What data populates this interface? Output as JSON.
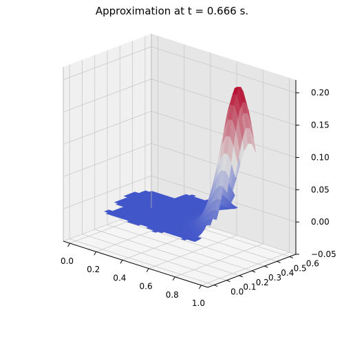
{
  "chart_data": {
    "type": "surface",
    "title": "Approximation at t = 0.666 s.",
    "xlabel": "",
    "ylabel": "",
    "zlabel": "",
    "xlim": [
      -0.05,
      1.05
    ],
    "ylim": [
      -0.05,
      0.65
    ],
    "zlim": [
      -0.05,
      0.22
    ],
    "x_ticks": [
      "0.0",
      "0.2",
      "0.4",
      "0.6",
      "0.8",
      "1.0"
    ],
    "y_ticks": [
      "0.0",
      "0.1",
      "0.2",
      "0.3",
      "0.4",
      "0.5",
      "0.6"
    ],
    "z_ticks": [
      "−0.05",
      "0.00",
      "0.05",
      "0.10",
      "0.15",
      "0.20"
    ],
    "colormap": "coolwarm",
    "grid": true,
    "surface": {
      "baseline_z": 0.0,
      "peak_x": 0.87,
      "peak_y": 0.38,
      "peak_z": 0.22,
      "peak_width": 0.09
    },
    "colors": {
      "low": "#4156c9",
      "mid": "#dddcdc",
      "high": "#b40426",
      "pane_left": "#f0f0f0",
      "pane_right": "#e6e6e6",
      "pane_floor": "#f5f5f5",
      "grid": "#c9c9c9"
    }
  }
}
